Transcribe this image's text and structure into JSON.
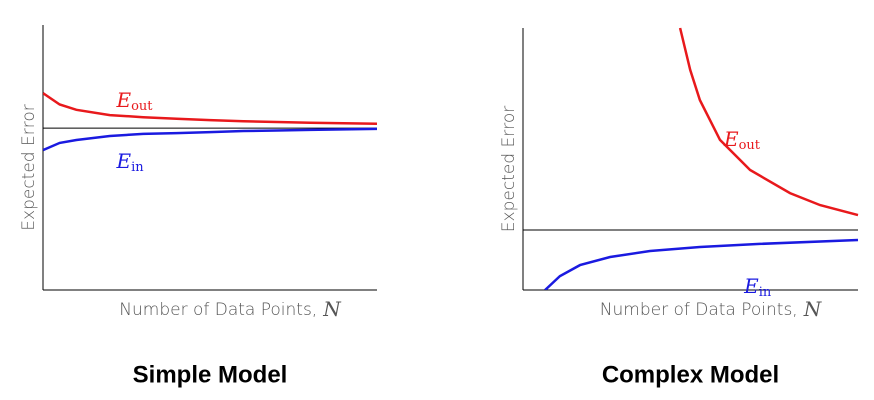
{
  "chart_data": [
    {
      "type": "line",
      "title": "Simple Model",
      "y_label": "Expected Error",
      "x_label": "Number of Data Points,",
      "x_label_var": "N",
      "xlim": [
        0,
        1
      ],
      "ylim": [
        0,
        1
      ],
      "asymptote": 0.611,
      "series": [
        {
          "name": "E",
          "name_sub": "out",
          "color": "#e8191c",
          "x": [
            0,
            0.05,
            0.1,
            0.2,
            0.3,
            0.4,
            0.5,
            0.6,
            0.7,
            0.8,
            0.9,
            1
          ],
          "values": [
            0.743,
            0.7,
            0.68,
            0.66,
            0.652,
            0.646,
            0.641,
            0.637,
            0.634,
            0.631,
            0.629,
            0.627
          ]
        },
        {
          "name": "E",
          "name_sub": "in",
          "color": "#1a1ae0",
          "x": [
            0,
            0.05,
            0.1,
            0.2,
            0.3,
            0.4,
            0.5,
            0.6,
            0.7,
            0.8,
            0.9,
            1
          ],
          "values": [
            0.528,
            0.555,
            0.566,
            0.581,
            0.589,
            0.592,
            0.596,
            0.6,
            0.602,
            0.604,
            0.606,
            0.608
          ]
        }
      ]
    },
    {
      "type": "line",
      "title": "Complex Model",
      "y_label": "Expected Error",
      "x_label": "Number of Data Points,",
      "x_label_var": "N",
      "xlim": [
        0,
        1
      ],
      "ylim": [
        0,
        1
      ],
      "asymptote": 0.229,
      "series": [
        {
          "name": "E",
          "name_sub": "out",
          "color": "#e8191c",
          "x": [
            0.469,
            0.499,
            0.528,
            0.588,
            0.678,
            0.797,
            0.887,
            1
          ],
          "values": [
            1,
            0.84,
            0.725,
            0.573,
            0.458,
            0.37,
            0.324,
            0.286
          ]
        },
        {
          "name": "E",
          "name_sub": "in",
          "color": "#1a1ae0",
          "x": [
            0.066,
            0.11,
            0.17,
            0.26,
            0.379,
            0.528,
            0.707,
            1
          ],
          "values": [
            0,
            0.053,
            0.095,
            0.126,
            0.149,
            0.164,
            0.176,
            0.191
          ]
        }
      ]
    }
  ]
}
